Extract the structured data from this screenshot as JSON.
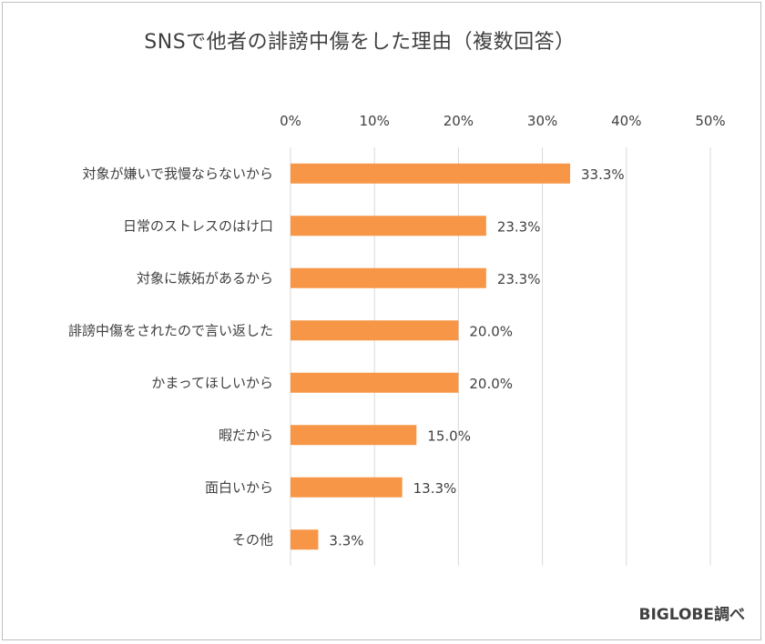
{
  "title": "SNSで他者の誹謗中傷をした理由（複数回答）",
  "source": "BIGLOBE調べ",
  "colors": {
    "bar": "#F79646",
    "grid": "#d9d9d9",
    "text": "#404040"
  },
  "chart_data": {
    "type": "bar",
    "orientation": "horizontal",
    "title": "SNSで他者の誹謗中傷をした理由（複数回答）",
    "categories": [
      "対象が嫌いで我慢ならないから",
      "日常のストレスのはけ口",
      "対象に嫉妬があるから",
      "誹謗中傷をされたので言い返した",
      "かまってほしいから",
      "暇だから",
      "面白いから",
      "その他"
    ],
    "values": [
      33.3,
      23.3,
      23.3,
      20.0,
      20.0,
      15.0,
      13.3,
      3.3
    ],
    "data_labels": [
      "33.3%",
      "23.3%",
      "23.3%",
      "20.0%",
      "20.0%",
      "15.0%",
      "13.3%",
      "3.3%"
    ],
    "x_ticks": [
      "0%",
      "10%",
      "20%",
      "30%",
      "40%",
      "50%"
    ],
    "xlim": [
      0,
      50
    ],
    "grid": true,
    "legend": "none",
    "axis_position": "top"
  }
}
